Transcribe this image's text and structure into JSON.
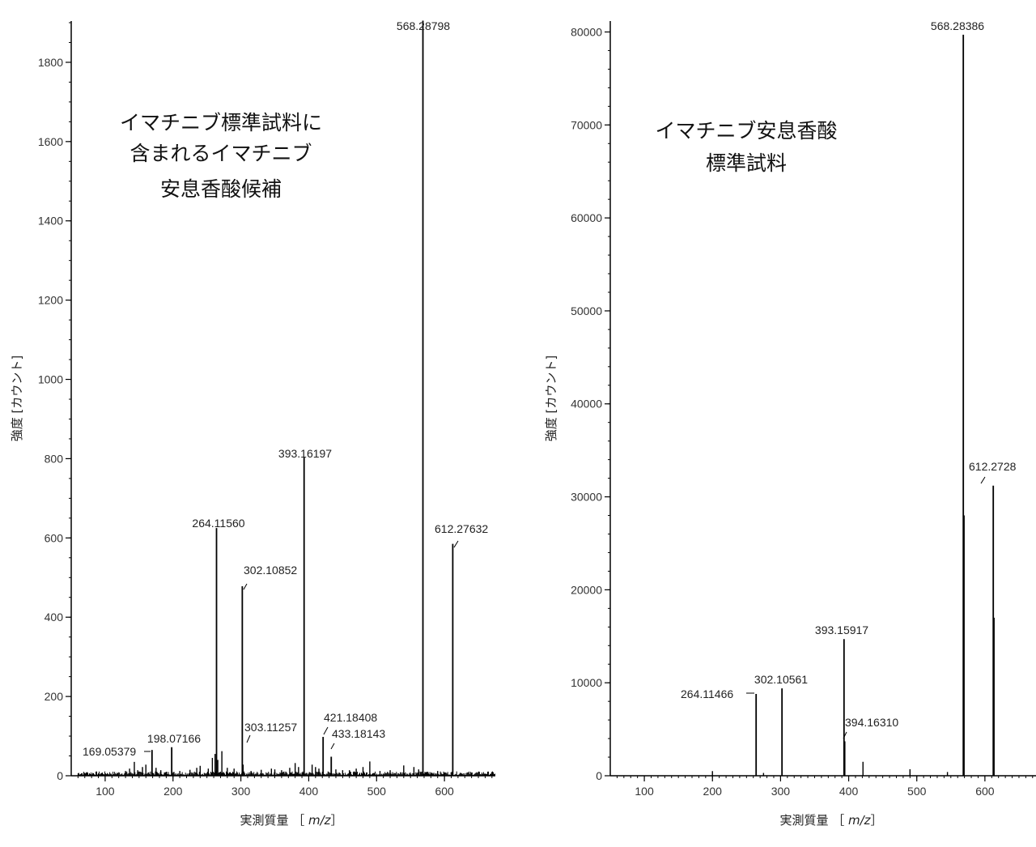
{
  "chart_data": [
    {
      "type": "bar",
      "style": "mass-spectrum",
      "title": "",
      "annotation": [
        "イマチニブ標準試料に",
        "含まれるイマチニブ",
        "安息香酸候補"
      ],
      "xlabel": "実測質量 ［",
      "xlabel_italic": "m/z",
      "xlabel_end": "］",
      "ylabel": "強度 [カウント]",
      "xlim": [
        50,
        675
      ],
      "ylim": [
        0,
        1900
      ],
      "xticks": [
        100,
        200,
        300,
        400,
        500,
        600
      ],
      "yticks": [
        0,
        200,
        400,
        600,
        800,
        1000,
        1200,
        1400,
        1600,
        1800
      ],
      "ytick_labels": [
        "0",
        "200",
        "400",
        "600",
        "800",
        "1000",
        "1200",
        "1400",
        "1600",
        "1800"
      ],
      "x_minor_step": 10,
      "y_minor_step": 50,
      "line_color": "#000000",
      "peaks": [
        {
          "mz": 169.05379,
          "intensity": 65,
          "label": "169.05379"
        },
        {
          "mz": 198.07166,
          "intensity": 72,
          "label": "198.07166"
        },
        {
          "mz": 264.1156,
          "intensity": 625,
          "label": "264.11560"
        },
        {
          "mz": 302.10852,
          "intensity": 478,
          "label": "302.10852"
        },
        {
          "mz": 303.11257,
          "intensity": 28,
          "label": "303.11257"
        },
        {
          "mz": 393.16197,
          "intensity": 805,
          "label": "393.16197"
        },
        {
          "mz": 421.18408,
          "intensity": 98,
          "label": "421.18408"
        },
        {
          "mz": 433.18143,
          "intensity": 48,
          "label": "433.18143"
        },
        {
          "mz": 568.28798,
          "intensity": 1905,
          "label": "568.28798"
        },
        {
          "mz": 612.27632,
          "intensity": 585,
          "label": "612.27632"
        }
      ],
      "minor_peaks": [
        {
          "mz": 72,
          "intensity": 8
        },
        {
          "mz": 95,
          "intensity": 5
        },
        {
          "mz": 118,
          "intensity": 7
        },
        {
          "mz": 130,
          "intensity": 12
        },
        {
          "mz": 136,
          "intensity": 18
        },
        {
          "mz": 143,
          "intensity": 35
        },
        {
          "mz": 148,
          "intensity": 14
        },
        {
          "mz": 155,
          "intensity": 22
        },
        {
          "mz": 160,
          "intensity": 28
        },
        {
          "mz": 175,
          "intensity": 20
        },
        {
          "mz": 182,
          "intensity": 14
        },
        {
          "mz": 190,
          "intensity": 10
        },
        {
          "mz": 210,
          "intensity": 12
        },
        {
          "mz": 225,
          "intensity": 15
        },
        {
          "mz": 235,
          "intensity": 20
        },
        {
          "mz": 240,
          "intensity": 25
        },
        {
          "mz": 252,
          "intensity": 18
        },
        {
          "mz": 258,
          "intensity": 45
        },
        {
          "mz": 262,
          "intensity": 55
        },
        {
          "mz": 266,
          "intensity": 40
        },
        {
          "mz": 272,
          "intensity": 62
        },
        {
          "mz": 280,
          "intensity": 20
        },
        {
          "mz": 290,
          "intensity": 18
        },
        {
          "mz": 315,
          "intensity": 12
        },
        {
          "mz": 330,
          "intensity": 15
        },
        {
          "mz": 345,
          "intensity": 18
        },
        {
          "mz": 350,
          "intensity": 16
        },
        {
          "mz": 360,
          "intensity": 14
        },
        {
          "mz": 372,
          "intensity": 20
        },
        {
          "mz": 380,
          "intensity": 32
        },
        {
          "mz": 385,
          "intensity": 22
        },
        {
          "mz": 405,
          "intensity": 28
        },
        {
          "mz": 410,
          "intensity": 22
        },
        {
          "mz": 415,
          "intensity": 18
        },
        {
          "mz": 440,
          "intensity": 16
        },
        {
          "mz": 450,
          "intensity": 14
        },
        {
          "mz": 460,
          "intensity": 14
        },
        {
          "mz": 470,
          "intensity": 18
        },
        {
          "mz": 480,
          "intensity": 22
        },
        {
          "mz": 490,
          "intensity": 36
        },
        {
          "mz": 505,
          "intensity": 12
        },
        {
          "mz": 520,
          "intensity": 14
        },
        {
          "mz": 540,
          "intensity": 26
        },
        {
          "mz": 555,
          "intensity": 22
        },
        {
          "mz": 562,
          "intensity": 16
        },
        {
          "mz": 575,
          "intensity": 10
        },
        {
          "mz": 590,
          "intensity": 12
        },
        {
          "mz": 600,
          "intensity": 8
        },
        {
          "mz": 625,
          "intensity": 6
        },
        {
          "mz": 640,
          "intensity": 5
        },
        {
          "mz": 660,
          "intensity": 5
        }
      ]
    },
    {
      "type": "bar",
      "style": "mass-spectrum",
      "title": "",
      "annotation": [
        "イマチニブ安息香酸",
        "標準試料"
      ],
      "xlabel": "実測質量 ［",
      "xlabel_italic": "m/z",
      "xlabel_end": "］",
      "ylabel": "強度 [カウント]",
      "xlim": [
        50,
        675
      ],
      "ylim": [
        0,
        81000
      ],
      "xticks": [
        100,
        200,
        300,
        400,
        500,
        600
      ],
      "yticks": [
        0,
        10000,
        20000,
        30000,
        40000,
        50000,
        60000,
        70000,
        80000
      ],
      "ytick_labels": [
        "0",
        "10000",
        "20000",
        "30000",
        "40000",
        "50000",
        "60000",
        "70000",
        "80000"
      ],
      "x_minor_step": 10,
      "y_minor_step": 2000,
      "line_color": "#000000",
      "peaks": [
        {
          "mz": 264.11466,
          "intensity": 8800,
          "label": "264.11466"
        },
        {
          "mz": 302.10561,
          "intensity": 9400,
          "label": "302.10561"
        },
        {
          "mz": 393.15917,
          "intensity": 14700,
          "label": "393.15917"
        },
        {
          "mz": 394.1631,
          "intensity": 3700,
          "label": "394.16310"
        },
        {
          "mz": 568.28386,
          "intensity": 79700,
          "label": "568.28386"
        },
        {
          "mz": 612.2728,
          "intensity": 31200,
          "label": "612.2728"
        }
      ],
      "minor_peaks": [
        {
          "mz": 200,
          "intensity": 500
        },
        {
          "mz": 275,
          "intensity": 300
        },
        {
          "mz": 421,
          "intensity": 1500
        },
        {
          "mz": 490,
          "intensity": 700
        },
        {
          "mz": 545,
          "intensity": 400
        },
        {
          "mz": 569.5,
          "intensity": 28000
        },
        {
          "mz": 613.5,
          "intensity": 17000
        }
      ]
    }
  ]
}
